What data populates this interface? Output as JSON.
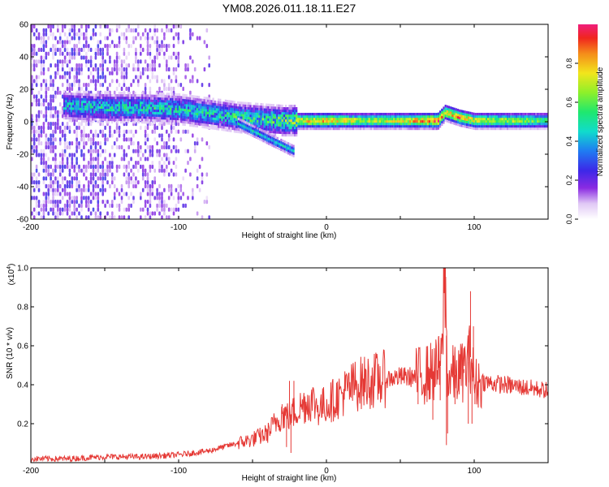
{
  "title": "YM08.2026.011.18.11.E27",
  "chart_data": [
    {
      "type": "heatmap",
      "xlabel": "Height of straight line (km)",
      "ylabel": "Frequency (Hz)",
      "xlim": [
        -200,
        150
      ],
      "ylim": [
        -60,
        60
      ],
      "xticks": [
        "-200",
        "-100",
        "0",
        "100"
      ],
      "yticks": [
        "-60",
        "-40",
        "-20",
        "0",
        "20",
        "40",
        "60"
      ],
      "colorbar": {
        "label": "Normalized spectral amplitude",
        "range": [
          0,
          1
        ],
        "ticks": [
          "0.0",
          "0.2",
          "0.4",
          "0.6",
          "0.8"
        ]
      },
      "ridge": {
        "description_points_x": [
          -175,
          -150,
          -125,
          -100,
          -75,
          -60,
          -45,
          -30,
          -15,
          0,
          25,
          50,
          75,
          80,
          90,
          100,
          125,
          150
        ],
        "center_frequency_hz": [
          9,
          8,
          8,
          7,
          4,
          2,
          1,
          0,
          0,
          0,
          0,
          0,
          0,
          5,
          2,
          0,
          0,
          0
        ],
        "peak_amplitude": [
          0.45,
          0.5,
          0.5,
          0.5,
          0.5,
          0.55,
          0.55,
          0.65,
          0.75,
          0.8,
          0.65,
          0.7,
          0.9,
          0.7,
          0.85,
          0.7,
          0.65,
          0.55
        ]
      },
      "noise_region_x": [
        -200,
        -80
      ]
    },
    {
      "type": "line",
      "xlabel": "Height of straight line (km)",
      "ylabel": "SNR (10 * v/v)",
      "yscale_label": "(x10",
      "yscale_exp": "4",
      "yscale_close": ")",
      "xlim": [
        -200,
        150
      ],
      "ylim": [
        0,
        1.0
      ],
      "xticks": [
        "-200",
        "-100",
        "0",
        "100"
      ],
      "yticks": [
        "0.2",
        "0.4",
        "0.6",
        "0.8",
        "1.0"
      ],
      "color": "#e53935",
      "series": [
        {
          "name": "SNR",
          "x": [
            -200,
            -175,
            -150,
            -125,
            -100,
            -90,
            -80,
            -70,
            -60,
            -50,
            -40,
            -35,
            -30,
            -25,
            -20,
            -15,
            -10,
            -5,
            0,
            10,
            20,
            30,
            40,
            50,
            60,
            65,
            70,
            75,
            78,
            80,
            82,
            85,
            90,
            95,
            98,
            100,
            105,
            110,
            120,
            130,
            140,
            150
          ],
          "y": [
            0.02,
            0.02,
            0.03,
            0.03,
            0.04,
            0.05,
            0.06,
            0.08,
            0.1,
            0.12,
            0.15,
            0.2,
            0.25,
            0.24,
            0.27,
            0.3,
            0.32,
            0.28,
            0.3,
            0.35,
            0.4,
            0.42,
            0.43,
            0.44,
            0.44,
            0.45,
            0.46,
            0.48,
            0.5,
            1.0,
            0.42,
            0.45,
            0.45,
            0.5,
            0.55,
            0.4,
            0.42,
            0.41,
            0.4,
            0.39,
            0.38,
            0.37
          ]
        }
      ],
      "spikes": [
        {
          "x": 80.5,
          "y": 1.0
        },
        {
          "x": 81.2,
          "y": 0.09
        },
        {
          "x": 82,
          "y": 0.15
        },
        {
          "x": 86,
          "y": 0.55
        },
        {
          "x": 87,
          "y": 0.3
        },
        {
          "x": 93,
          "y": 0.46
        },
        {
          "x": 96,
          "y": 0.2
        },
        {
          "x": 97.5,
          "y": 0.88
        },
        {
          "x": 98.5,
          "y": 0.2
        },
        {
          "x": 99.5,
          "y": 0.7
        },
        {
          "x": 100.5,
          "y": 0.3
        },
        {
          "x": 72,
          "y": 0.22
        },
        {
          "x": 76,
          "y": 0.65
        },
        {
          "x": 77,
          "y": 0.32
        },
        {
          "x": 62,
          "y": 0.3
        },
        {
          "x": -25,
          "y": 0.42
        },
        {
          "x": -24,
          "y": 0.05
        },
        {
          "x": -22,
          "y": 0.42
        },
        {
          "x": -27,
          "y": 0.08
        },
        {
          "x": -30,
          "y": 0.3
        }
      ]
    }
  ]
}
